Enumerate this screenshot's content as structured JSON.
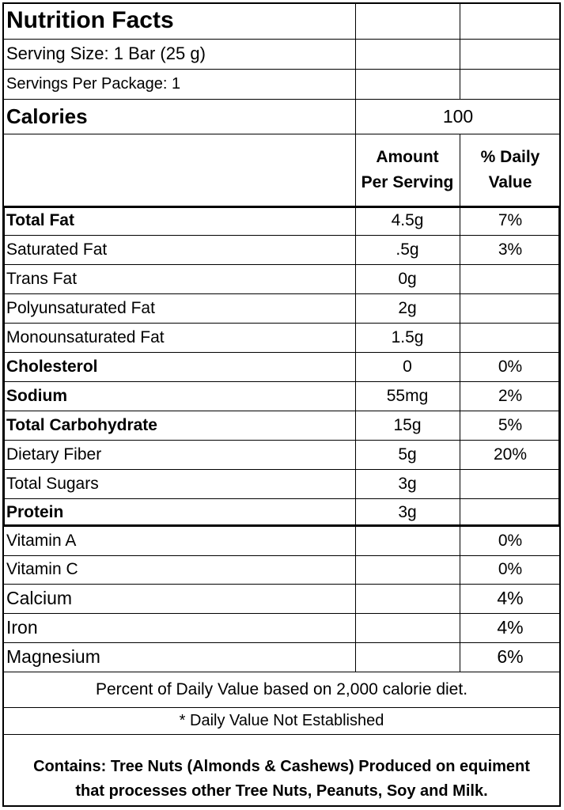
{
  "title": "Nutrition Facts",
  "serving_size": "Serving Size: 1 Bar (25 g)",
  "servings_per_package": "Servings Per Package: 1",
  "calories": {
    "label": "Calories",
    "value": "100"
  },
  "column_headers": {
    "amount_line1": "Amount",
    "amount_line2": "Per Serving",
    "dv_line1": "% Daily",
    "dv_line2": "Value"
  },
  "nutrients": [
    {
      "name": "Total Fat",
      "amount": "4.5g",
      "dv": "7%"
    },
    {
      "name": "Saturated Fat",
      "amount": ".5g",
      "dv": "3%"
    },
    {
      "name": "Trans Fat",
      "amount": "0g",
      "dv": ""
    },
    {
      "name": "Polyunsaturated Fat",
      "amount": "2g",
      "dv": ""
    },
    {
      "name": "Monounsaturated Fat",
      "amount": "1.5g",
      "dv": ""
    },
    {
      "name": "Cholesterol",
      "amount": "0",
      "dv": "0%"
    },
    {
      "name": "Sodium",
      "amount": "55mg",
      "dv": "2%"
    },
    {
      "name": "Total Carbohydrate",
      "amount": "15g",
      "dv": "5%"
    },
    {
      "name": "Dietary Fiber",
      "amount": "5g",
      "dv": "20%"
    },
    {
      "name": "Total Sugars",
      "amount": "3g",
      "dv": ""
    },
    {
      "name": "Protein",
      "amount": "3g",
      "dv": ""
    }
  ],
  "vitamins": [
    {
      "name": "Vitamin A",
      "dv": "0%"
    },
    {
      "name": "Vitamin C",
      "dv": "0%"
    },
    {
      "name": "Calcium",
      "dv": "4%"
    },
    {
      "name": "Iron",
      "dv": "4%"
    },
    {
      "name": "Magnesium",
      "dv": "6%"
    }
  ],
  "footnote_daily_value": "Percent of Daily Value based on 2,000 calorie diet.",
  "footnote_not_established": "* Daily Value Not Established",
  "allergen_line1": "Contains:  Tree Nuts (Almonds & Cashews) Produced on equiment",
  "allergen_line2": "that processes other Tree Nuts, Peanuts, Soy and Milk."
}
